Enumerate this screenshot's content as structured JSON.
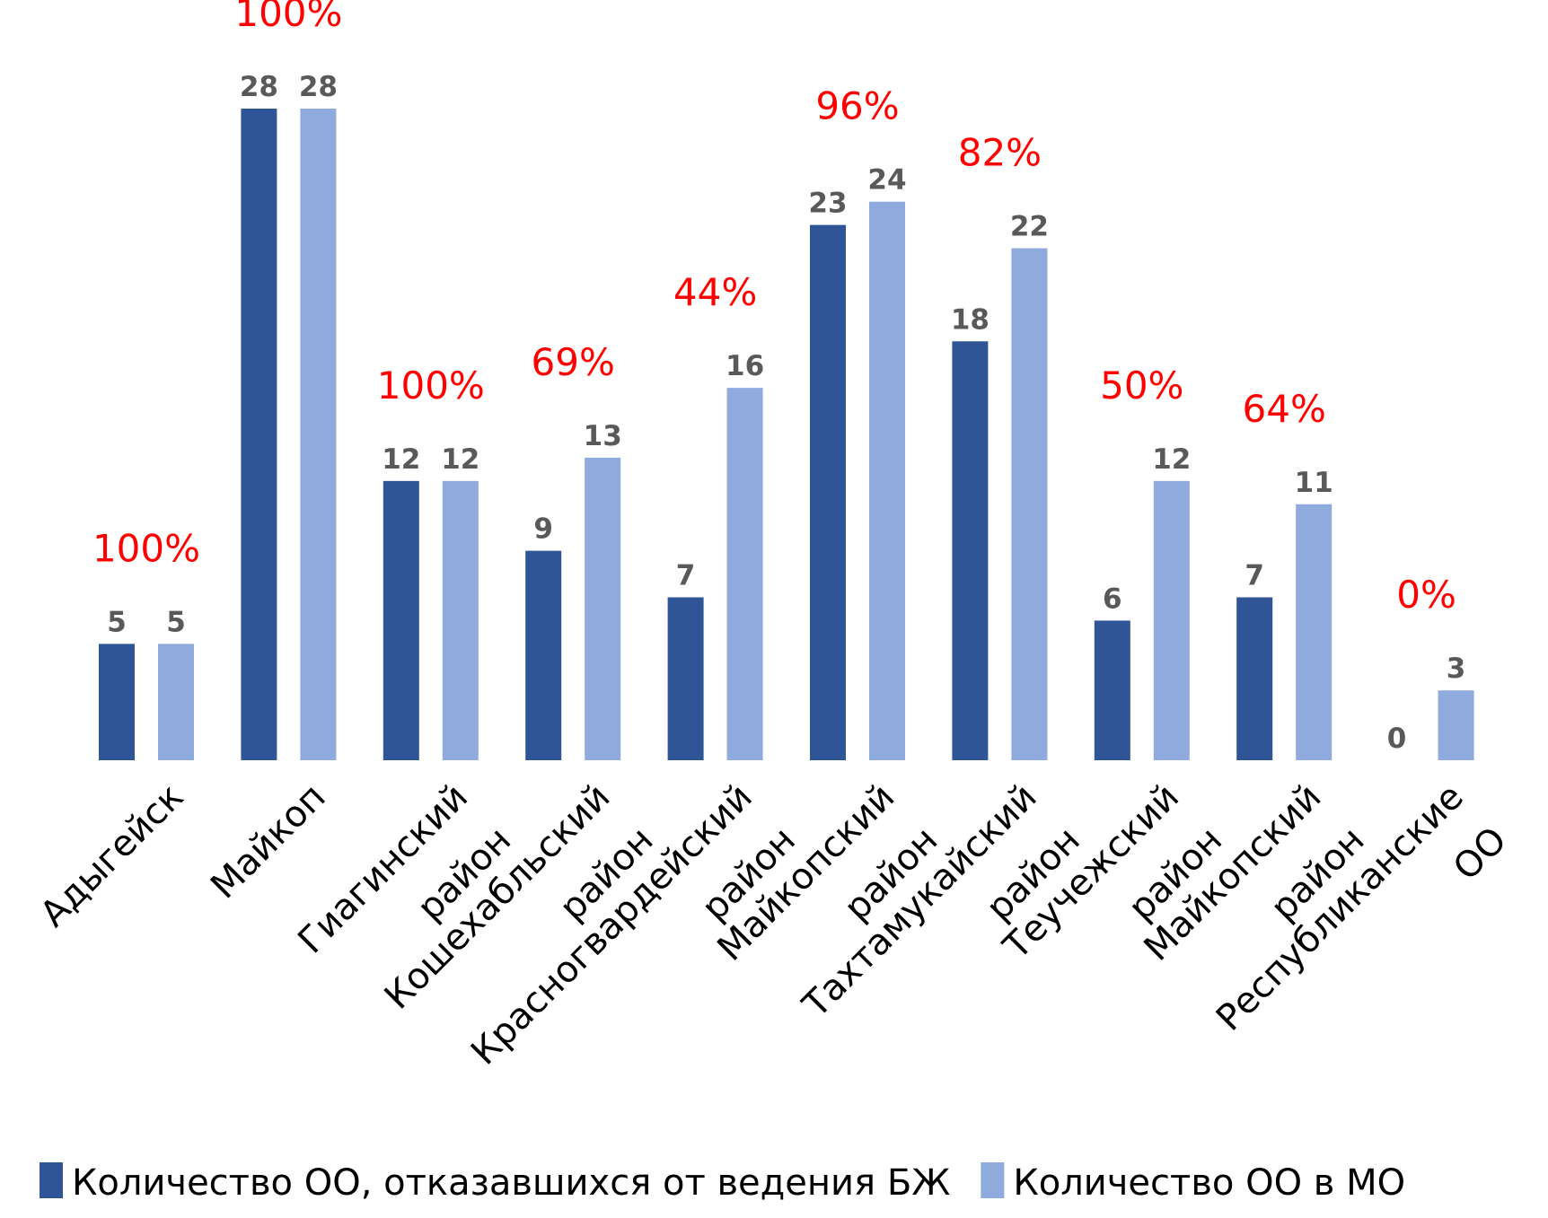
{
  "chart_data": {
    "type": "bar",
    "categories": [
      "Адыгейск",
      "Майкоп",
      "Гиагинский район",
      "Кошехабльский район",
      "Красногвардейский район",
      "Майкопский район",
      "Тахтамукайский район",
      "Теучежский район",
      "Майкопский район",
      "Республиканские ОО"
    ],
    "series": [
      {
        "name": "Количество ОО, отказавшихся от ведения БЖ",
        "color": "#2f5597",
        "values": [
          5,
          28,
          12,
          9,
          7,
          23,
          18,
          6,
          7,
          0
        ]
      },
      {
        "name": "Количество ОО в МО",
        "color": "#8faadc",
        "values": [
          5,
          28,
          12,
          13,
          16,
          24,
          22,
          12,
          11,
          3
        ]
      }
    ],
    "annotations": [
      "100%",
      "100%",
      "100%",
      "69%",
      "44%",
      "96%",
      "82%",
      "50%",
      "64%",
      "0%"
    ],
    "ylim": [
      0,
      28
    ],
    "legend": "bottom"
  }
}
